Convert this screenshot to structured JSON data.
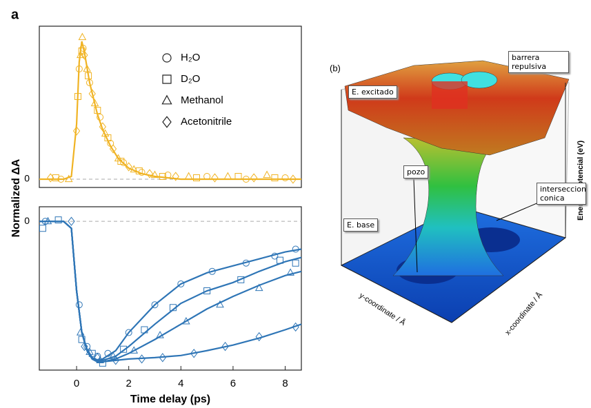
{
  "panel_label": "a",
  "chart_data": [
    {
      "type": "scatter",
      "ylabel": "Normalized ΔA",
      "color": "#f0b323",
      "xlim": [
        -1.43,
        8.62
      ],
      "ylim": [
        -0.06,
        1.11
      ],
      "yticks": [
        0
      ],
      "zero_line": true,
      "fit_x": [
        -1.43,
        -0.5,
        -0.2,
        0,
        0.1,
        0.2,
        0.3,
        0.5,
        0.8,
        1.0,
        1.3,
        1.6,
        2,
        2.5,
        3,
        4,
        5,
        6,
        7,
        8,
        8.62
      ],
      "fit": [
        0,
        0,
        0.02,
        0.4,
        0.85,
        1.0,
        0.92,
        0.7,
        0.47,
        0.36,
        0.24,
        0.15,
        0.08,
        0.04,
        0.02,
        0,
        0,
        0,
        0,
        0,
        0
      ],
      "series": [
        {
          "name": "H₂O",
          "marker": "circle",
          "x": [
            -0.6,
            0.1,
            0.25,
            0.5,
            0.9,
            1.3,
            1.8,
            2.5,
            3.5,
            5.0,
            6.5,
            8.0
          ],
          "values": [
            0.0,
            0.8,
            0.95,
            0.7,
            0.45,
            0.26,
            0.12,
            0.05,
            0.03,
            0.02,
            0.0,
            0.01
          ]
        },
        {
          "name": "D₂O",
          "marker": "square",
          "x": [
            -0.8,
            0.05,
            0.2,
            0.45,
            0.8,
            1.2,
            1.7,
            2.4,
            3.3,
            4.6,
            6.2,
            7.6
          ],
          "values": [
            0.01,
            0.6,
            0.93,
            0.75,
            0.5,
            0.3,
            0.13,
            0.06,
            0.02,
            0.01,
            0.02,
            0.01
          ]
        },
        {
          "name": "Methanol",
          "marker": "triangle",
          "x": [
            -0.3,
            0.15,
            0.22,
            0.4,
            0.7,
            1.1,
            1.6,
            2.2,
            3.0,
            4.3,
            5.8,
            7.3
          ],
          "values": [
            0.0,
            0.9,
            1.03,
            0.8,
            0.55,
            0.33,
            0.15,
            0.07,
            0.03,
            0.02,
            0.02,
            0.03
          ]
        },
        {
          "name": "Acetonitrile",
          "marker": "diamond",
          "x": [
            -1.0,
            0.0,
            0.3,
            0.6,
            1.0,
            1.4,
            2.0,
            2.8,
            3.8,
            5.3,
            6.8,
            8.3
          ],
          "values": [
            0.01,
            0.35,
            0.9,
            0.62,
            0.38,
            0.22,
            0.09,
            0.04,
            0.02,
            0.01,
            0.01,
            0.0
          ]
        }
      ]
    },
    {
      "type": "scatter",
      "xlabel": "Time delay (ps)",
      "color": "#2e75b6",
      "xlim": [
        -1.43,
        8.62
      ],
      "ylim": [
        -1.07,
        0.105
      ],
      "xticks": [
        0,
        2,
        4,
        6,
        8
      ],
      "yticks": [
        0
      ],
      "zero_line": true,
      "fit_x": [
        -1.43,
        -0.5,
        -0.2,
        0,
        0.2,
        0.4,
        0.6,
        0.8,
        1,
        1.5,
        2,
        3,
        4,
        5,
        6,
        7,
        8,
        8.62
      ],
      "series": [
        {
          "marker": "circle",
          "fit": [
            0,
            0,
            -0.05,
            -0.5,
            -0.8,
            -0.92,
            -0.98,
            -1.0,
            -0.99,
            -0.93,
            -0.8,
            -0.6,
            -0.45,
            -0.37,
            -0.32,
            -0.27,
            -0.22,
            -0.2
          ],
          "x": [
            -1.2,
            0.1,
            0.4,
            0.8,
            1.2,
            2.0,
            3.0,
            4.0,
            5.2,
            6.5,
            7.6,
            8.4
          ],
          "values": [
            0.0,
            -0.6,
            -0.9,
            -0.97,
            -0.95,
            -0.8,
            -0.6,
            -0.45,
            -0.36,
            -0.3,
            -0.25,
            -0.2
          ]
        },
        {
          "marker": "square",
          "fit": [
            0,
            0,
            -0.05,
            -0.5,
            -0.8,
            -0.93,
            -0.99,
            -1.01,
            -1.0,
            -0.97,
            -0.9,
            -0.74,
            -0.59,
            -0.5,
            -0.44,
            -0.36,
            -0.29,
            -0.26
          ],
          "x": [
            -1.3,
            -0.7,
            0.2,
            0.6,
            1.0,
            1.8,
            2.6,
            3.7,
            5.0,
            6.3,
            7.8,
            8.4
          ],
          "values": [
            -0.05,
            0.01,
            -0.85,
            -0.95,
            -1.02,
            -0.92,
            -0.78,
            -0.62,
            -0.5,
            -0.42,
            -0.28,
            -0.3
          ]
        },
        {
          "marker": "triangle",
          "fit": [
            0,
            0,
            -0.05,
            -0.5,
            -0.8,
            -0.93,
            -0.99,
            -1.01,
            -1.01,
            -0.99,
            -0.95,
            -0.85,
            -0.74,
            -0.63,
            -0.54,
            -0.46,
            -0.39,
            -0.36
          ],
          "x": [
            -1.1,
            0.15,
            0.5,
            0.9,
            1.4,
            2.2,
            3.2,
            4.2,
            5.5,
            7.0,
            8.2
          ],
          "values": [
            0.0,
            -0.8,
            -0.94,
            -1.0,
            -0.97,
            -0.93,
            -0.82,
            -0.72,
            -0.6,
            -0.48,
            -0.37
          ]
        },
        {
          "marker": "diamond",
          "fit": [
            0,
            0,
            -0.05,
            -0.5,
            -0.8,
            -0.93,
            -0.99,
            -1.01,
            -1.01,
            -1.0,
            -0.99,
            -0.98,
            -0.965,
            -0.93,
            -0.89,
            -0.84,
            -0.78,
            -0.74
          ],
          "x": [
            -0.2,
            0.3,
            0.8,
            1.5,
            2.5,
            3.3,
            4.5,
            5.7,
            7.0,
            8.4
          ],
          "values": [
            0.0,
            -0.9,
            -0.98,
            -1.0,
            -0.99,
            -0.98,
            -0.95,
            -0.9,
            -0.83,
            -0.76
          ]
        }
      ]
    }
  ],
  "figure_b": {
    "label": "(b)",
    "barrier": "barrera repulsiva",
    "excited": "E. excitado",
    "well": "pozo",
    "conical": "interseccion conica",
    "ground": "E. base",
    "zlabel": "Energia Potencial (eV)",
    "ylabel": "y-coordinate / Å",
    "xlabel": "x-coordinate / Å"
  }
}
